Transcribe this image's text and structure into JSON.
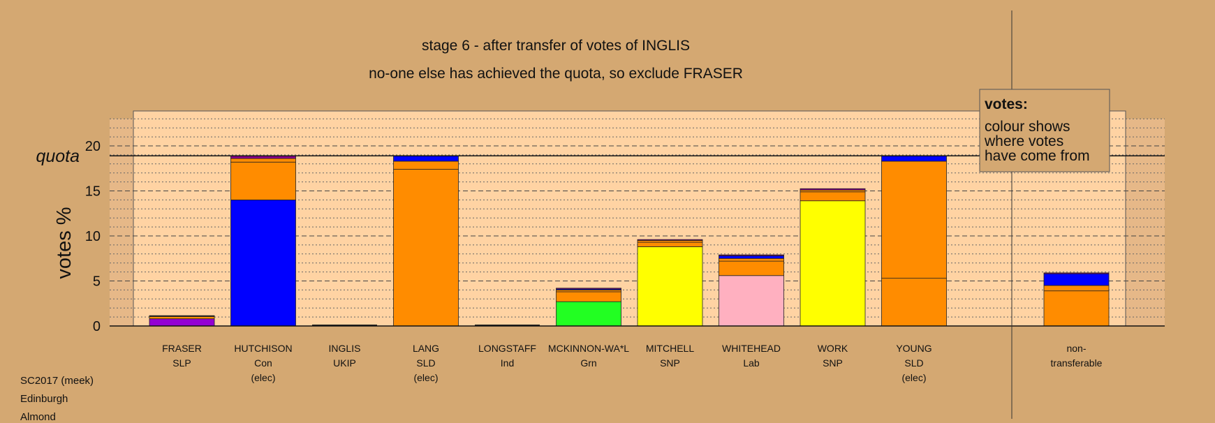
{
  "chart_data": {
    "type": "bar",
    "title": "stage 6 - after transfer of votes of INGLIS",
    "subtitle": "no-one else has achieved the quota, so exclude FRASER",
    "ylabel": "votes %",
    "ylim": [
      0,
      23
    ],
    "yticks": [
      "0",
      "5",
      "10",
      "15",
      "20"
    ],
    "quota": {
      "label": "quota",
      "value": 18.9
    },
    "stack_colors": {
      "SLP": "#9400d3",
      "Con": "#0000ff",
      "SLD": "#ff8c00",
      "Grn": "#22ff22",
      "SNP": "#ffff00",
      "Lab": "#ffb0c0",
      "UKIP": "#8b008b"
    },
    "bars": [
      {
        "name": "FRASER",
        "party": "SLP",
        "note": "",
        "segments": [
          {
            "party": "SLP",
            "value": 0.8
          },
          {
            "party": "SLD",
            "value": 0.25
          },
          {
            "party": "Con",
            "value": 0.05
          },
          {
            "party": "UKIP",
            "value": 0.05
          }
        ]
      },
      {
        "name": "HUTCHISON",
        "party": "Con",
        "note": "(elec)",
        "segments": [
          {
            "party": "Con",
            "value": 14.0
          },
          {
            "party": "SLD",
            "value": 4.2
          },
          {
            "party": "SLD",
            "value": 0.4
          },
          {
            "party": "UKIP",
            "value": 0.3
          }
        ]
      },
      {
        "name": "INGLIS",
        "party": "UKIP",
        "note": "",
        "segments": []
      },
      {
        "name": "LANG",
        "party": "SLD",
        "note": "(elec)",
        "segments": [
          {
            "party": "SLD",
            "value": 17.4
          },
          {
            "party": "SLD",
            "value": 0.9
          },
          {
            "party": "Con",
            "value": 0.6
          }
        ]
      },
      {
        "name": "LONGSTAFF",
        "party": "Ind",
        "note": "",
        "segments": []
      },
      {
        "name": "MCKINNON-WA*L",
        "party": "Grn",
        "note": "",
        "segments": [
          {
            "party": "Grn",
            "value": 2.7
          },
          {
            "party": "SLD",
            "value": 1.1
          },
          {
            "party": "SLD",
            "value": 0.2
          },
          {
            "party": "Con",
            "value": 0.1
          },
          {
            "party": "UKIP",
            "value": 0.1
          }
        ]
      },
      {
        "name": "MITCHELL",
        "party": "SNP",
        "note": "",
        "segments": [
          {
            "party": "SNP",
            "value": 8.8
          },
          {
            "party": "SLD",
            "value": 0.5
          },
          {
            "party": "SLD",
            "value": 0.2
          },
          {
            "party": "UKIP",
            "value": 0.1
          }
        ]
      },
      {
        "name": "WHITEHEAD",
        "party": "Lab",
        "note": "",
        "segments": [
          {
            "party": "Lab",
            "value": 5.6
          },
          {
            "party": "SLD",
            "value": 1.6
          },
          {
            "party": "SLD",
            "value": 0.3
          },
          {
            "party": "Con",
            "value": 0.3
          },
          {
            "party": "UKIP",
            "value": 0.1
          }
        ]
      },
      {
        "name": "WORK",
        "party": "SNP",
        "note": "",
        "segments": [
          {
            "party": "SNP",
            "value": 13.9
          },
          {
            "party": "SLD",
            "value": 1.0
          },
          {
            "party": "SLD",
            "value": 0.2
          },
          {
            "party": "UKIP",
            "value": 0.15
          }
        ]
      },
      {
        "name": "YOUNG",
        "party": "SLD",
        "note": "(elec)",
        "segments": [
          {
            "party": "SLD",
            "value": 5.3
          },
          {
            "party": "SLD",
            "value": 13.0
          },
          {
            "party": "Con",
            "value": 0.6
          }
        ]
      },
      {
        "name": "non-",
        "party": "transferable",
        "note": "",
        "segments": [
          {
            "party": "SLD",
            "value": 3.9
          },
          {
            "party": "SLD",
            "value": 0.6
          },
          {
            "party": "Con",
            "value": 1.3
          },
          {
            "party": "UKIP",
            "value": 0.1
          }
        ]
      }
    ],
    "legend": {
      "title": "votes:",
      "lines": [
        "colour shows",
        "where votes",
        "have come from"
      ],
      "placement": "top-right"
    }
  },
  "footer": {
    "line1": "SC2017 (meek)",
    "line2": "Edinburgh",
    "line3": "Almond"
  }
}
